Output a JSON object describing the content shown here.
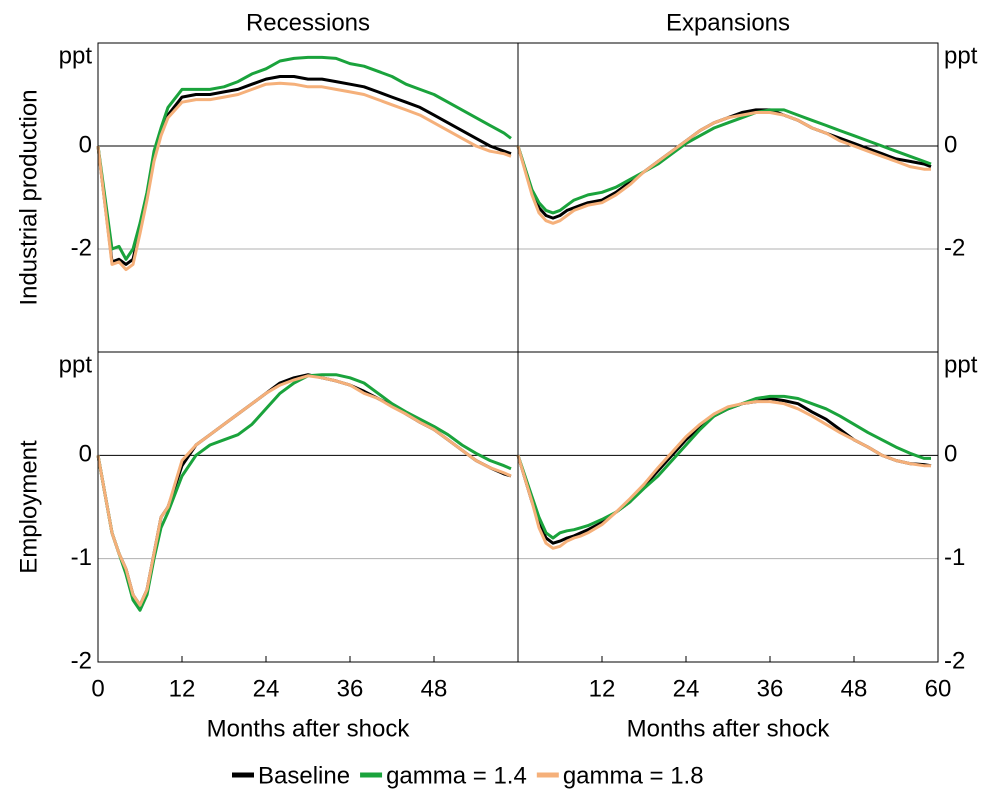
{
  "chart_data": [
    {
      "type": "line",
      "title": "Recessions",
      "y_label": "Industrial production",
      "y_axis_side": "left",
      "x": [
        0,
        2,
        3,
        4,
        5,
        6,
        7,
        8,
        9,
        10,
        12,
        14,
        16,
        18,
        20,
        22,
        24,
        26,
        28,
        30,
        32,
        34,
        36,
        38,
        40,
        42,
        44,
        46,
        48,
        50,
        52,
        54,
        56,
        58,
        59
      ],
      "xlim": [
        0,
        60
      ],
      "ylim": [
        -4,
        2
      ],
      "yticks": [
        {
          "value": 2,
          "label": "ppt"
        },
        0,
        -2
      ],
      "grid": true,
      "series": [
        {
          "name": "Baseline",
          "color": "#000000",
          "values": [
            0,
            -2.25,
            -2.2,
            -2.3,
            -2.2,
            -1.6,
            -1.0,
            -0.2,
            0.3,
            0.6,
            0.95,
            1.0,
            1.0,
            1.05,
            1.1,
            1.2,
            1.3,
            1.35,
            1.35,
            1.3,
            1.3,
            1.25,
            1.2,
            1.15,
            1.05,
            0.95,
            0.85,
            0.75,
            0.6,
            0.45,
            0.3,
            0.15,
            0.0,
            -0.1,
            -0.15
          ]
        },
        {
          "name": "gamma = 1.4",
          "color": "#1aa33c",
          "values": [
            0,
            -2.0,
            -1.95,
            -2.2,
            -2.0,
            -1.5,
            -0.9,
            -0.1,
            0.35,
            0.75,
            1.1,
            1.1,
            1.1,
            1.15,
            1.25,
            1.4,
            1.5,
            1.65,
            1.7,
            1.72,
            1.72,
            1.7,
            1.6,
            1.55,
            1.45,
            1.35,
            1.2,
            1.1,
            1.0,
            0.85,
            0.7,
            0.55,
            0.4,
            0.25,
            0.15
          ]
        },
        {
          "name": "gamma = 1.8",
          "color": "#f5b07a",
          "values": [
            0,
            -2.3,
            -2.25,
            -2.4,
            -2.3,
            -1.7,
            -1.05,
            -0.3,
            0.2,
            0.55,
            0.85,
            0.9,
            0.9,
            0.95,
            1.0,
            1.1,
            1.2,
            1.22,
            1.2,
            1.15,
            1.15,
            1.1,
            1.05,
            1.0,
            0.9,
            0.8,
            0.7,
            0.6,
            0.45,
            0.3,
            0.15,
            0.0,
            -0.1,
            -0.15,
            -0.2
          ]
        }
      ]
    },
    {
      "type": "line",
      "title": "Expansions",
      "y_axis_side": "right",
      "x": [
        0,
        2,
        3,
        4,
        5,
        6,
        7,
        8,
        9,
        10,
        12,
        14,
        16,
        18,
        20,
        22,
        24,
        26,
        28,
        30,
        32,
        34,
        36,
        38,
        40,
        42,
        44,
        46,
        48,
        50,
        52,
        54,
        56,
        58,
        59
      ],
      "xlim": [
        0,
        60
      ],
      "ylim": [
        -4,
        2
      ],
      "yticks": [
        {
          "value": 2,
          "label": "ppt"
        },
        0,
        -2
      ],
      "grid": true,
      "series": [
        {
          "color": "#000000",
          "values": [
            0,
            -0.9,
            -1.2,
            -1.35,
            -1.4,
            -1.35,
            -1.25,
            -1.2,
            -1.15,
            -1.1,
            -1.05,
            -0.9,
            -0.7,
            -0.5,
            -0.3,
            -0.1,
            0.1,
            0.3,
            0.45,
            0.55,
            0.65,
            0.7,
            0.7,
            0.6,
            0.5,
            0.35,
            0.25,
            0.15,
            0.05,
            -0.05,
            -0.15,
            -0.25,
            -0.3,
            -0.35,
            -0.4
          ]
        },
        {
          "color": "#1aa33c",
          "values": [
            0,
            -0.85,
            -1.1,
            -1.25,
            -1.3,
            -1.25,
            -1.15,
            -1.05,
            -1.0,
            -0.95,
            -0.9,
            -0.8,
            -0.65,
            -0.5,
            -0.35,
            -0.15,
            0.05,
            0.2,
            0.35,
            0.45,
            0.55,
            0.65,
            0.7,
            0.7,
            0.6,
            0.5,
            0.4,
            0.3,
            0.2,
            0.1,
            0.0,
            -0.1,
            -0.2,
            -0.3,
            -0.35
          ]
        },
        {
          "color": "#f5b07a",
          "values": [
            0,
            -0.95,
            -1.3,
            -1.45,
            -1.5,
            -1.45,
            -1.35,
            -1.25,
            -1.2,
            -1.15,
            -1.1,
            -0.95,
            -0.75,
            -0.5,
            -0.3,
            -0.1,
            0.1,
            0.3,
            0.45,
            0.55,
            0.6,
            0.65,
            0.65,
            0.6,
            0.5,
            0.35,
            0.25,
            0.1,
            0.0,
            -0.1,
            -0.2,
            -0.3,
            -0.4,
            -0.45,
            -0.45
          ]
        }
      ]
    },
    {
      "type": "line",
      "y_label": "Employment",
      "x_label": "Months after shock",
      "y_axis_side": "left",
      "x": [
        0,
        2,
        3,
        4,
        5,
        6,
        7,
        8,
        9,
        10,
        12,
        14,
        16,
        18,
        20,
        22,
        24,
        26,
        28,
        30,
        32,
        34,
        36,
        38,
        40,
        42,
        44,
        46,
        48,
        50,
        52,
        54,
        56,
        58,
        59
      ],
      "xlim": [
        0,
        60
      ],
      "xticks": [
        0,
        12,
        24,
        36,
        48
      ],
      "ylim": [
        -2,
        1
      ],
      "yticks": [
        {
          "value": 1,
          "label": "ppt"
        },
        0,
        -1,
        -2
      ],
      "grid": true,
      "series": [
        {
          "color": "#000000",
          "values": [
            0,
            -0.75,
            -0.95,
            -1.1,
            -1.35,
            -1.45,
            -1.3,
            -0.95,
            -0.6,
            -0.5,
            -0.1,
            0.1,
            0.2,
            0.3,
            0.4,
            0.5,
            0.6,
            0.7,
            0.75,
            0.78,
            0.75,
            0.72,
            0.68,
            0.62,
            0.55,
            0.48,
            0.4,
            0.32,
            0.25,
            0.15,
            0.05,
            -0.05,
            -0.12,
            -0.18,
            -0.2
          ]
        },
        {
          "color": "#1aa33c",
          "values": [
            0,
            -0.75,
            -0.95,
            -1.15,
            -1.4,
            -1.5,
            -1.35,
            -1.0,
            -0.7,
            -0.55,
            -0.2,
            0.0,
            0.1,
            0.15,
            0.2,
            0.3,
            0.45,
            0.6,
            0.7,
            0.77,
            0.78,
            0.78,
            0.75,
            0.7,
            0.6,
            0.5,
            0.42,
            0.35,
            0.28,
            0.2,
            0.1,
            0.02,
            -0.05,
            -0.1,
            -0.13
          ]
        },
        {
          "color": "#f5b07a",
          "values": [
            0,
            -0.75,
            -0.95,
            -1.1,
            -1.35,
            -1.45,
            -1.3,
            -0.95,
            -0.6,
            -0.5,
            -0.05,
            0.1,
            0.2,
            0.3,
            0.4,
            0.5,
            0.6,
            0.68,
            0.73,
            0.77,
            0.75,
            0.72,
            0.68,
            0.6,
            0.55,
            0.47,
            0.4,
            0.32,
            0.25,
            0.15,
            0.05,
            -0.05,
            -0.12,
            -0.17,
            -0.2
          ]
        }
      ]
    },
    {
      "type": "line",
      "x_label": "Months after shock",
      "y_axis_side": "right",
      "x": [
        0,
        2,
        3,
        4,
        5,
        6,
        7,
        8,
        9,
        10,
        12,
        14,
        16,
        18,
        20,
        22,
        24,
        26,
        28,
        30,
        32,
        34,
        36,
        38,
        40,
        42,
        44,
        46,
        48,
        50,
        52,
        54,
        56,
        58,
        59
      ],
      "xlim": [
        0,
        60
      ],
      "xticks": [
        12,
        24,
        36,
        48,
        60
      ],
      "ylim": [
        -2,
        1
      ],
      "yticks": [
        {
          "value": 1,
          "label": "ppt"
        },
        0,
        -1,
        -2
      ],
      "grid": true,
      "series": [
        {
          "color": "#000000",
          "values": [
            0,
            -0.45,
            -0.65,
            -0.8,
            -0.85,
            -0.83,
            -0.8,
            -0.78,
            -0.75,
            -0.72,
            -0.65,
            -0.55,
            -0.45,
            -0.3,
            -0.15,
            0.0,
            0.15,
            0.28,
            0.38,
            0.45,
            0.5,
            0.52,
            0.55,
            0.53,
            0.5,
            0.42,
            0.35,
            0.25,
            0.15,
            0.08,
            0.0,
            -0.05,
            -0.08,
            -0.09,
            -0.1
          ]
        },
        {
          "color": "#1aa33c",
          "values": [
            0,
            -0.4,
            -0.6,
            -0.75,
            -0.8,
            -0.75,
            -0.73,
            -0.72,
            -0.7,
            -0.68,
            -0.62,
            -0.55,
            -0.45,
            -0.32,
            -0.2,
            -0.05,
            0.1,
            0.25,
            0.38,
            0.45,
            0.5,
            0.55,
            0.57,
            0.57,
            0.55,
            0.5,
            0.45,
            0.38,
            0.3,
            0.22,
            0.15,
            0.08,
            0.02,
            -0.03,
            -0.03
          ]
        },
        {
          "color": "#f5b07a",
          "values": [
            0,
            -0.45,
            -0.7,
            -0.85,
            -0.9,
            -0.88,
            -0.83,
            -0.8,
            -0.78,
            -0.75,
            -0.67,
            -0.55,
            -0.42,
            -0.28,
            -0.12,
            0.03,
            0.18,
            0.3,
            0.4,
            0.47,
            0.5,
            0.52,
            0.52,
            0.5,
            0.45,
            0.38,
            0.3,
            0.22,
            0.15,
            0.08,
            0.0,
            -0.05,
            -0.08,
            -0.1,
            -0.1
          ]
        }
      ]
    }
  ]
}
